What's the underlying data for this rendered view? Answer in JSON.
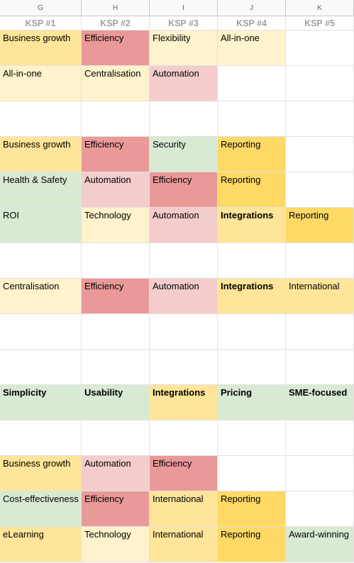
{
  "colors": {
    "lightyellow": "#fff2cc",
    "yellow": "#ffe599",
    "gold": "#ffd966",
    "red": "#ea9999",
    "pink": "#f4cccc",
    "green": "#d9ead3",
    "white": "#ffffff"
  },
  "columns": [
    "G",
    "H",
    "I",
    "J",
    "K"
  ],
  "headers": [
    "KSP #1",
    "KSP #2",
    "KSP #3",
    "KSP #4",
    "KSP #5"
  ],
  "rows": [
    [
      [
        "Business growth",
        "yellow",
        false
      ],
      [
        "Efficiency",
        "red",
        false
      ],
      [
        "Flexibility",
        "lightyellow",
        false
      ],
      [
        "All-in-one",
        "lightyellow",
        false
      ],
      [
        "",
        "white",
        false
      ]
    ],
    [
      [
        "All-in-one",
        "lightyellow",
        false
      ],
      [
        "Centralisation",
        "lightyellow",
        false
      ],
      [
        "Automation",
        "pink",
        false
      ],
      [
        "",
        "white",
        false
      ],
      [
        "",
        "white",
        false
      ]
    ],
    [
      [
        "",
        "white",
        false
      ],
      [
        "",
        "white",
        false
      ],
      [
        "",
        "white",
        false
      ],
      [
        "",
        "white",
        false
      ],
      [
        "",
        "white",
        false
      ]
    ],
    [
      [
        "Business growth",
        "yellow",
        false
      ],
      [
        "Efficiency",
        "red",
        false
      ],
      [
        "Security",
        "green",
        false
      ],
      [
        "Reporting",
        "gold",
        false
      ],
      [
        "",
        "white",
        false
      ]
    ],
    [
      [
        "Health & Safety",
        "green",
        false
      ],
      [
        "Automation",
        "pink",
        false
      ],
      [
        "Efficiency",
        "red",
        false
      ],
      [
        "Reporting",
        "gold",
        false
      ],
      [
        "",
        "white",
        false
      ]
    ],
    [
      [
        "ROI",
        "green",
        false
      ],
      [
        "Technology",
        "lightyellow",
        false
      ],
      [
        "Automation",
        "pink",
        false
      ],
      [
        "Integrations",
        "yellow",
        true
      ],
      [
        "Reporting",
        "gold",
        false
      ]
    ],
    [
      [
        "",
        "white",
        false
      ],
      [
        "",
        "white",
        false
      ],
      [
        "",
        "white",
        false
      ],
      [
        "",
        "white",
        false
      ],
      [
        "",
        "white",
        false
      ]
    ],
    [
      [
        "Centralisation",
        "lightyellow",
        false
      ],
      [
        "Efficiency",
        "red",
        false
      ],
      [
        "Automation",
        "pink",
        false
      ],
      [
        "Integrations",
        "yellow",
        true
      ],
      [
        "International",
        "yellow",
        false
      ]
    ],
    [
      [
        "",
        "white",
        false
      ],
      [
        "",
        "white",
        false
      ],
      [
        "",
        "white",
        false
      ],
      [
        "",
        "white",
        false
      ],
      [
        "",
        "white",
        false
      ]
    ],
    [
      [
        "",
        "white",
        false
      ],
      [
        "",
        "white",
        false
      ],
      [
        "",
        "white",
        false
      ],
      [
        "",
        "white",
        false
      ],
      [
        "",
        "white",
        false
      ]
    ],
    [
      [
        "Simplicity",
        "green",
        true
      ],
      [
        "Usability",
        "green",
        true
      ],
      [
        "Integrations",
        "yellow",
        true
      ],
      [
        "Pricing",
        "green",
        true
      ],
      [
        "SME-focused",
        "green",
        true
      ]
    ],
    [
      [
        "",
        "white",
        false
      ],
      [
        "",
        "white",
        false
      ],
      [
        "",
        "white",
        false
      ],
      [
        "",
        "white",
        false
      ],
      [
        "",
        "white",
        false
      ]
    ],
    [
      [
        "Business growth",
        "yellow",
        false
      ],
      [
        "Automation",
        "pink",
        false
      ],
      [
        "Efficiency",
        "red",
        false
      ],
      [
        "",
        "white",
        false
      ],
      [
        "",
        "white",
        false
      ]
    ],
    [
      [
        "Cost-effectiveness",
        "green",
        false
      ],
      [
        "Efficiency",
        "red",
        false
      ],
      [
        "International",
        "yellow",
        false
      ],
      [
        "Reporting",
        "gold",
        false
      ],
      [
        "",
        "white",
        false
      ]
    ],
    [
      [
        "eLearning",
        "yellow",
        false
      ],
      [
        "Technology",
        "lightyellow",
        false
      ],
      [
        "International",
        "yellow",
        false
      ],
      [
        "Reporting",
        "gold",
        false
      ],
      [
        "Award-winning",
        "green",
        false
      ]
    ]
  ]
}
